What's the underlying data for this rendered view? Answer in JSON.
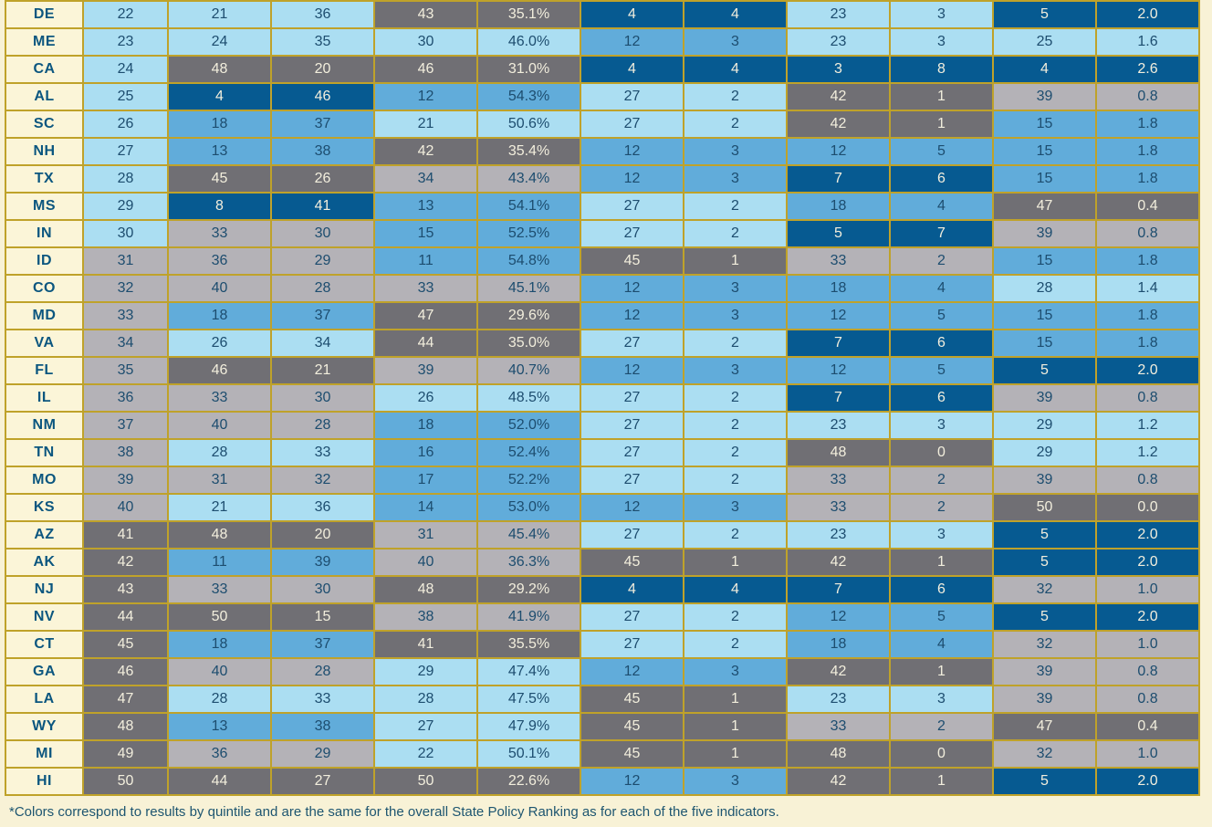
{
  "footnote": "*Colors correspond to results by quintile and are the same for the overall State Policy Ranking as for each of the five indicators.",
  "colors": {
    "page_background": "#f8f2d6",
    "border_gold": "#bfa22a",
    "state_cell_background": "#fbf5d8",
    "state_cell_text": "#0b567f",
    "dark_cell_text": "#f2eedd",
    "light_cell_text": "#1d4d6f",
    "footnote_text": "#1d5570"
  },
  "quintile_colors": {
    "q1": "#065a91",
    "q2": "#61acda",
    "q3": "#abdef2",
    "q4": "#b4b2b7",
    "q5": "#706f74"
  },
  "chart_data": {
    "type": "table",
    "legend_note": "Cell color = quintile of rank: 1-10 dark blue, 11-20 medium blue, 21-30 light blue, 31-40 light gray, 41-50 dark gray",
    "rows": [
      {
        "state": "DE",
        "overall_rank": 22,
        "indicators": [
          {
            "rank": 21,
            "value": "36"
          },
          {
            "rank": 43,
            "value": "35.1%"
          },
          {
            "rank": 4,
            "value": "4"
          },
          {
            "rank": 23,
            "value": "3"
          },
          {
            "rank": 5,
            "value": "2.0"
          }
        ]
      },
      {
        "state": "ME",
        "overall_rank": 23,
        "indicators": [
          {
            "rank": 24,
            "value": "35"
          },
          {
            "rank": 30,
            "value": "46.0%"
          },
          {
            "rank": 12,
            "value": "3"
          },
          {
            "rank": 23,
            "value": "3"
          },
          {
            "rank": 25,
            "value": "1.6"
          }
        ]
      },
      {
        "state": "CA",
        "overall_rank": 24,
        "indicators": [
          {
            "rank": 48,
            "value": "20"
          },
          {
            "rank": 46,
            "value": "31.0%"
          },
          {
            "rank": 4,
            "value": "4"
          },
          {
            "rank": 3,
            "value": "8"
          },
          {
            "rank": 4,
            "value": "2.6"
          }
        ]
      },
      {
        "state": "AL",
        "overall_rank": 25,
        "indicators": [
          {
            "rank": 4,
            "value": "46"
          },
          {
            "rank": 12,
            "value": "54.3%"
          },
          {
            "rank": 27,
            "value": "2"
          },
          {
            "rank": 42,
            "value": "1"
          },
          {
            "rank": 39,
            "value": "0.8"
          }
        ]
      },
      {
        "state": "SC",
        "overall_rank": 26,
        "indicators": [
          {
            "rank": 18,
            "value": "37"
          },
          {
            "rank": 21,
            "value": "50.6%"
          },
          {
            "rank": 27,
            "value": "2"
          },
          {
            "rank": 42,
            "value": "1"
          },
          {
            "rank": 15,
            "value": "1.8"
          }
        ]
      },
      {
        "state": "NH",
        "overall_rank": 27,
        "indicators": [
          {
            "rank": 13,
            "value": "38"
          },
          {
            "rank": 42,
            "value": "35.4%"
          },
          {
            "rank": 12,
            "value": "3"
          },
          {
            "rank": 12,
            "value": "5"
          },
          {
            "rank": 15,
            "value": "1.8"
          }
        ]
      },
      {
        "state": "TX",
        "overall_rank": 28,
        "indicators": [
          {
            "rank": 45,
            "value": "26"
          },
          {
            "rank": 34,
            "value": "43.4%"
          },
          {
            "rank": 12,
            "value": "3"
          },
          {
            "rank": 7,
            "value": "6"
          },
          {
            "rank": 15,
            "value": "1.8"
          }
        ]
      },
      {
        "state": "MS",
        "overall_rank": 29,
        "indicators": [
          {
            "rank": 8,
            "value": "41"
          },
          {
            "rank": 13,
            "value": "54.1%"
          },
          {
            "rank": 27,
            "value": "2"
          },
          {
            "rank": 18,
            "value": "4"
          },
          {
            "rank": 47,
            "value": "0.4"
          }
        ]
      },
      {
        "state": "IN",
        "overall_rank": 30,
        "indicators": [
          {
            "rank": 33,
            "value": "30"
          },
          {
            "rank": 15,
            "value": "52.5%"
          },
          {
            "rank": 27,
            "value": "2"
          },
          {
            "rank": 5,
            "value": "7"
          },
          {
            "rank": 39,
            "value": "0.8"
          }
        ]
      },
      {
        "state": "ID",
        "overall_rank": 31,
        "indicators": [
          {
            "rank": 36,
            "value": "29"
          },
          {
            "rank": 11,
            "value": "54.8%"
          },
          {
            "rank": 45,
            "value": "1"
          },
          {
            "rank": 33,
            "value": "2"
          },
          {
            "rank": 15,
            "value": "1.8"
          }
        ]
      },
      {
        "state": "CO",
        "overall_rank": 32,
        "indicators": [
          {
            "rank": 40,
            "value": "28"
          },
          {
            "rank": 33,
            "value": "45.1%"
          },
          {
            "rank": 12,
            "value": "3"
          },
          {
            "rank": 18,
            "value": "4"
          },
          {
            "rank": 28,
            "value": "1.4"
          }
        ]
      },
      {
        "state": "MD",
        "overall_rank": 33,
        "indicators": [
          {
            "rank": 18,
            "value": "37"
          },
          {
            "rank": 47,
            "value": "29.6%"
          },
          {
            "rank": 12,
            "value": "3"
          },
          {
            "rank": 12,
            "value": "5"
          },
          {
            "rank": 15,
            "value": "1.8"
          }
        ]
      },
      {
        "state": "VA",
        "overall_rank": 34,
        "indicators": [
          {
            "rank": 26,
            "value": "34"
          },
          {
            "rank": 44,
            "value": "35.0%"
          },
          {
            "rank": 27,
            "value": "2"
          },
          {
            "rank": 7,
            "value": "6"
          },
          {
            "rank": 15,
            "value": "1.8"
          }
        ]
      },
      {
        "state": "FL",
        "overall_rank": 35,
        "indicators": [
          {
            "rank": 46,
            "value": "21"
          },
          {
            "rank": 39,
            "value": "40.7%"
          },
          {
            "rank": 12,
            "value": "3"
          },
          {
            "rank": 12,
            "value": "5"
          },
          {
            "rank": 5,
            "value": "2.0"
          }
        ]
      },
      {
        "state": "IL",
        "overall_rank": 36,
        "indicators": [
          {
            "rank": 33,
            "value": "30"
          },
          {
            "rank": 26,
            "value": "48.5%"
          },
          {
            "rank": 27,
            "value": "2"
          },
          {
            "rank": 7,
            "value": "6"
          },
          {
            "rank": 39,
            "value": "0.8"
          }
        ]
      },
      {
        "state": "NM",
        "overall_rank": 37,
        "indicators": [
          {
            "rank": 40,
            "value": "28"
          },
          {
            "rank": 18,
            "value": "52.0%"
          },
          {
            "rank": 27,
            "value": "2"
          },
          {
            "rank": 23,
            "value": "3"
          },
          {
            "rank": 29,
            "value": "1.2"
          }
        ]
      },
      {
        "state": "TN",
        "overall_rank": 38,
        "indicators": [
          {
            "rank": 28,
            "value": "33"
          },
          {
            "rank": 16,
            "value": "52.4%"
          },
          {
            "rank": 27,
            "value": "2"
          },
          {
            "rank": 48,
            "value": "0"
          },
          {
            "rank": 29,
            "value": "1.2"
          }
        ]
      },
      {
        "state": "MO",
        "overall_rank": 39,
        "indicators": [
          {
            "rank": 31,
            "value": "32"
          },
          {
            "rank": 17,
            "value": "52.2%"
          },
          {
            "rank": 27,
            "value": "2"
          },
          {
            "rank": 33,
            "value": "2"
          },
          {
            "rank": 39,
            "value": "0.8"
          }
        ]
      },
      {
        "state": "KS",
        "overall_rank": 40,
        "indicators": [
          {
            "rank": 21,
            "value": "36"
          },
          {
            "rank": 14,
            "value": "53.0%"
          },
          {
            "rank": 12,
            "value": "3"
          },
          {
            "rank": 33,
            "value": "2"
          },
          {
            "rank": 50,
            "value": "0.0"
          }
        ]
      },
      {
        "state": "AZ",
        "overall_rank": 41,
        "indicators": [
          {
            "rank": 48,
            "value": "20"
          },
          {
            "rank": 31,
            "value": "45.4%"
          },
          {
            "rank": 27,
            "value": "2"
          },
          {
            "rank": 23,
            "value": "3"
          },
          {
            "rank": 5,
            "value": "2.0"
          }
        ]
      },
      {
        "state": "AK",
        "overall_rank": 42,
        "indicators": [
          {
            "rank": 11,
            "value": "39"
          },
          {
            "rank": 40,
            "value": "36.3%"
          },
          {
            "rank": 45,
            "value": "1"
          },
          {
            "rank": 42,
            "value": "1"
          },
          {
            "rank": 5,
            "value": "2.0"
          }
        ]
      },
      {
        "state": "NJ",
        "overall_rank": 43,
        "indicators": [
          {
            "rank": 33,
            "value": "30"
          },
          {
            "rank": 48,
            "value": "29.2%"
          },
          {
            "rank": 4,
            "value": "4"
          },
          {
            "rank": 7,
            "value": "6"
          },
          {
            "rank": 32,
            "value": "1.0"
          }
        ]
      },
      {
        "state": "NV",
        "overall_rank": 44,
        "indicators": [
          {
            "rank": 50,
            "value": "15"
          },
          {
            "rank": 38,
            "value": "41.9%"
          },
          {
            "rank": 27,
            "value": "2"
          },
          {
            "rank": 12,
            "value": "5"
          },
          {
            "rank": 5,
            "value": "2.0"
          }
        ]
      },
      {
        "state": "CT",
        "overall_rank": 45,
        "indicators": [
          {
            "rank": 18,
            "value": "37"
          },
          {
            "rank": 41,
            "value": "35.5%"
          },
          {
            "rank": 27,
            "value": "2"
          },
          {
            "rank": 18,
            "value": "4"
          },
          {
            "rank": 32,
            "value": "1.0"
          }
        ]
      },
      {
        "state": "GA",
        "overall_rank": 46,
        "indicators": [
          {
            "rank": 40,
            "value": "28"
          },
          {
            "rank": 29,
            "value": "47.4%"
          },
          {
            "rank": 12,
            "value": "3"
          },
          {
            "rank": 42,
            "value": "1"
          },
          {
            "rank": 39,
            "value": "0.8"
          }
        ]
      },
      {
        "state": "LA",
        "overall_rank": 47,
        "indicators": [
          {
            "rank": 28,
            "value": "33"
          },
          {
            "rank": 28,
            "value": "47.5%"
          },
          {
            "rank": 45,
            "value": "1"
          },
          {
            "rank": 23,
            "value": "3"
          },
          {
            "rank": 39,
            "value": "0.8"
          }
        ]
      },
      {
        "state": "WY",
        "overall_rank": 48,
        "indicators": [
          {
            "rank": 13,
            "value": "38"
          },
          {
            "rank": 27,
            "value": "47.9%"
          },
          {
            "rank": 45,
            "value": "1"
          },
          {
            "rank": 33,
            "value": "2"
          },
          {
            "rank": 47,
            "value": "0.4"
          }
        ]
      },
      {
        "state": "MI",
        "overall_rank": 49,
        "indicators": [
          {
            "rank": 36,
            "value": "29"
          },
          {
            "rank": 22,
            "value": "50.1%"
          },
          {
            "rank": 45,
            "value": "1"
          },
          {
            "rank": 48,
            "value": "0"
          },
          {
            "rank": 32,
            "value": "1.0"
          }
        ]
      },
      {
        "state": "HI",
        "overall_rank": 50,
        "indicators": [
          {
            "rank": 44,
            "value": "27"
          },
          {
            "rank": 50,
            "value": "22.6%"
          },
          {
            "rank": 12,
            "value": "3"
          },
          {
            "rank": 42,
            "value": "1"
          },
          {
            "rank": 5,
            "value": "2.0"
          }
        ]
      }
    ]
  }
}
